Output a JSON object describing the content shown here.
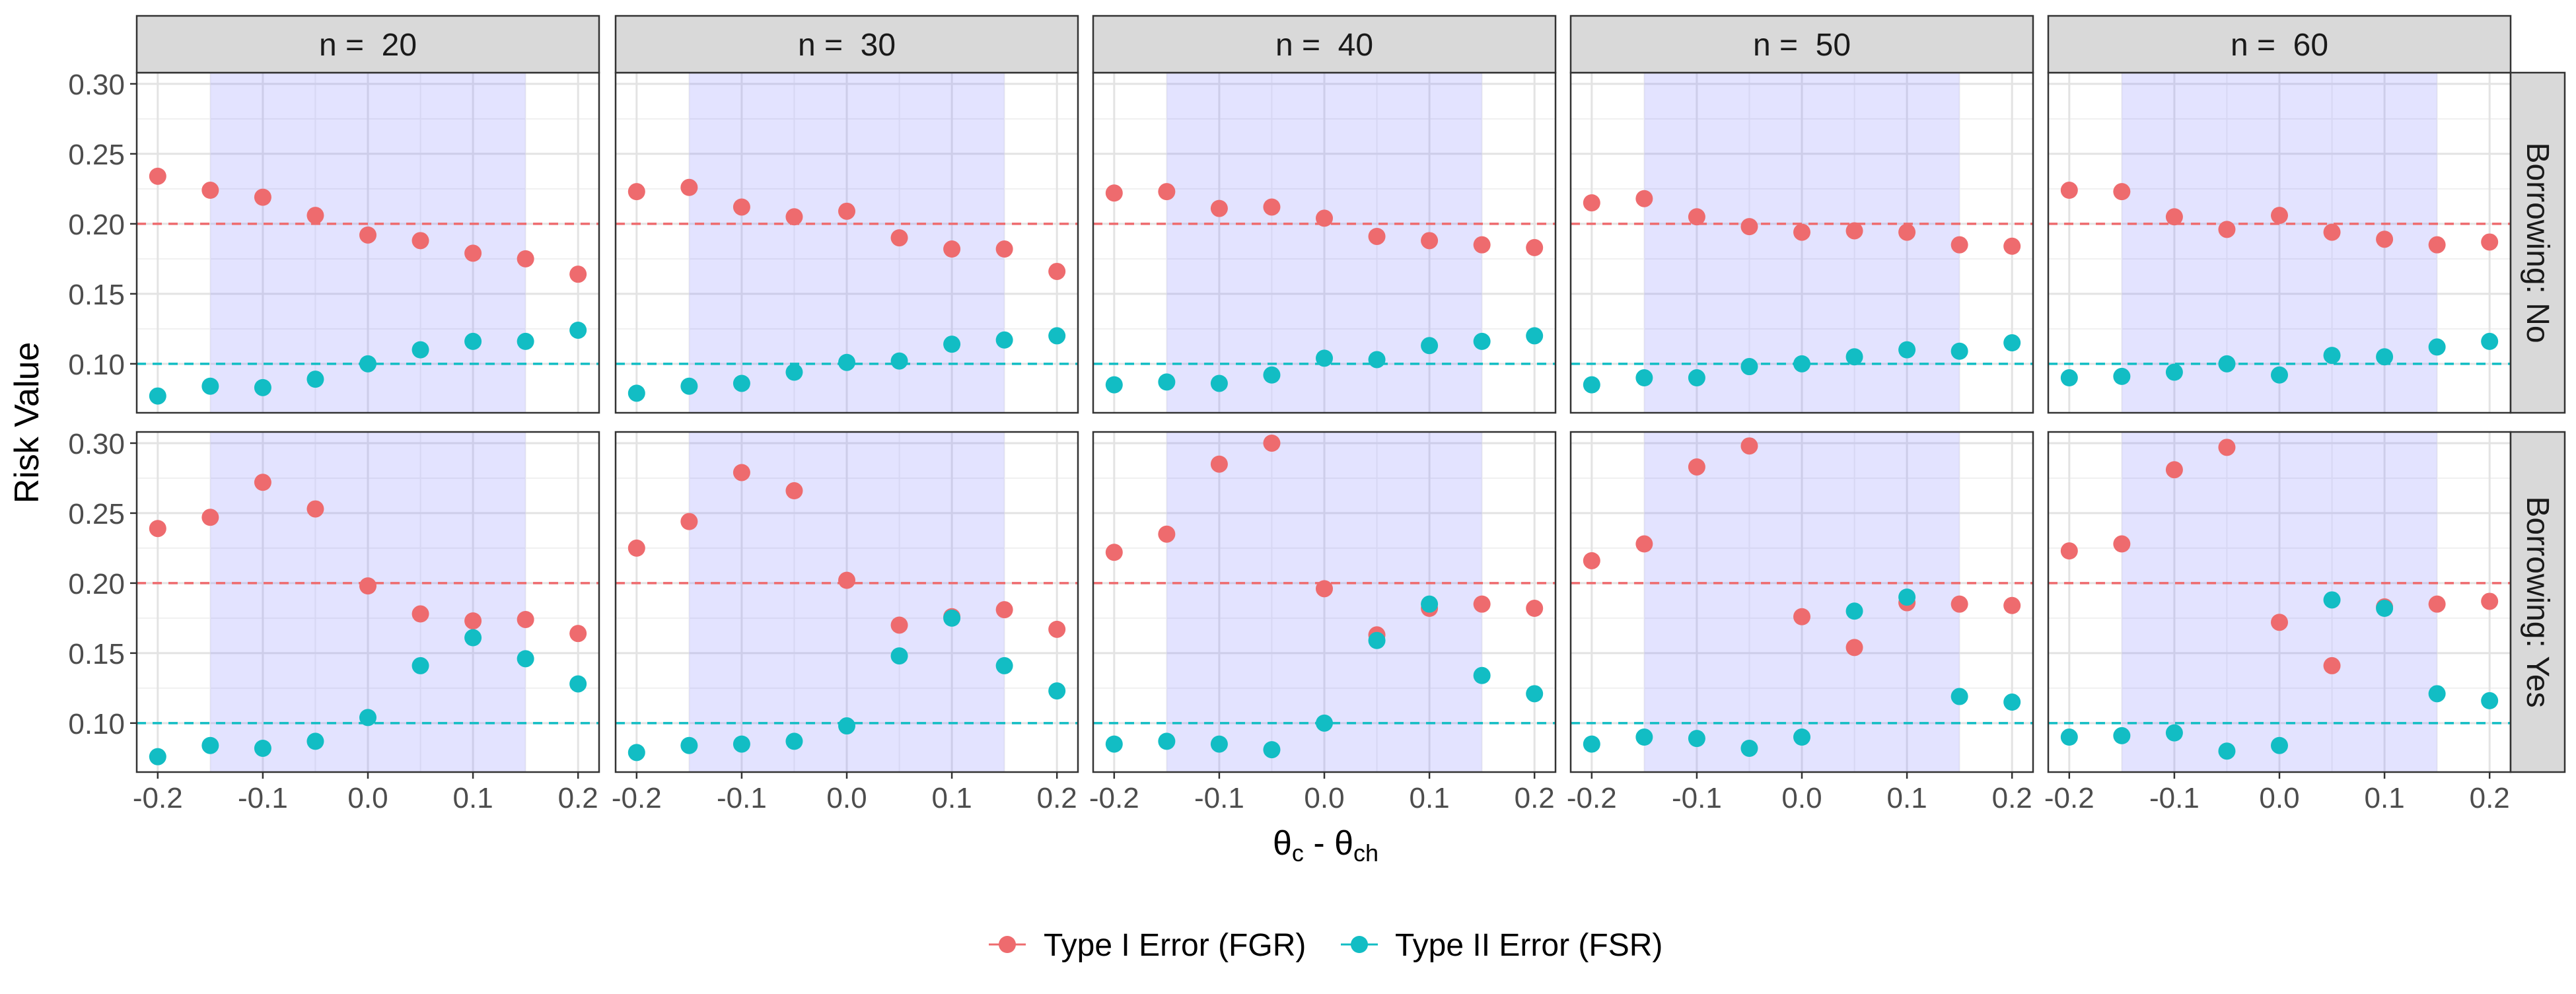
{
  "chart_data": {
    "type": "scatter",
    "title": "",
    "xlabel": "θc - θch",
    "xlabel_main": "θ",
    "xlabel_sub1": "c",
    "xlabel_sep": " - θ",
    "xlabel_sub2": "ch",
    "ylabel": "Risk Value",
    "xlim": [
      -0.22,
      0.22
    ],
    "ylim": [
      0.065,
      0.308
    ],
    "x": [
      -0.2,
      -0.15,
      -0.1,
      -0.05,
      0.0,
      0.05,
      0.1,
      0.15,
      0.2
    ],
    "x_ticks": [
      -0.2,
      -0.1,
      0.0,
      0.1,
      0.2
    ],
    "x_tick_labels": [
      "-0.2",
      "-0.1",
      "0.0",
      "0.1",
      "0.2"
    ],
    "y_ticks": [
      0.1,
      0.15,
      0.2,
      0.25,
      0.3
    ],
    "y_tick_labels": [
      "0.10",
      "0.15",
      "0.20",
      "0.25",
      "0.30"
    ],
    "shaded_region": [
      -0.15,
      0.15
    ],
    "shaded_color": "#e2e2ff",
    "grid": true,
    "legend_position": "bottom",
    "columns": [
      "n =  20",
      "n =  30",
      "n =  40",
      "n =  50",
      "n =  60"
    ],
    "rows": [
      "Borrowing: No",
      "Borrowing: Yes"
    ],
    "series": [
      {
        "name": "Type I Error (FGR)",
        "color": "#ee6b6e",
        "reference_line": 0.2,
        "values": [
          [
            [
              0.234,
              0.224,
              0.219,
              0.206,
              0.192,
              0.188,
              0.179,
              0.175,
              0.164
            ],
            [
              0.223,
              0.226,
              0.212,
              0.205,
              0.209,
              0.19,
              0.182,
              0.182,
              0.166
            ],
            [
              0.222,
              0.223,
              0.211,
              0.212,
              0.204,
              0.191,
              0.188,
              0.185,
              0.183
            ],
            [
              0.215,
              0.218,
              0.205,
              0.198,
              0.194,
              0.195,
              0.194,
              0.185,
              0.184
            ],
            [
              0.224,
              0.223,
              0.205,
              0.196,
              0.206,
              0.194,
              0.189,
              0.185,
              0.187
            ]
          ],
          [
            [
              0.239,
              0.247,
              0.272,
              0.253,
              0.198,
              0.178,
              0.173,
              0.174,
              0.164
            ],
            [
              0.225,
              0.244,
              0.279,
              0.266,
              0.202,
              0.17,
              0.176,
              0.181,
              0.167
            ],
            [
              0.222,
              0.235,
              0.285,
              0.3,
              0.196,
              0.163,
              0.182,
              0.185,
              0.182
            ],
            [
              0.216,
              0.228,
              0.283,
              0.298,
              0.176,
              0.154,
              0.186,
              0.185,
              0.184
            ],
            [
              0.223,
              0.228,
              0.281,
              0.297,
              0.172,
              0.141,
              0.183,
              0.185,
              0.187
            ]
          ]
        ]
      },
      {
        "name": "Type II Error (FSR)",
        "color": "#12bdc4",
        "reference_line": 0.1,
        "values": [
          [
            [
              0.077,
              0.084,
              0.083,
              0.089,
              0.1,
              0.11,
              0.116,
              0.116,
              0.124
            ],
            [
              0.079,
              0.084,
              0.086,
              0.094,
              0.101,
              0.102,
              0.114,
              0.117,
              0.12
            ],
            [
              0.085,
              0.087,
              0.086,
              0.092,
              0.104,
              0.103,
              0.113,
              0.116,
              0.12
            ],
            [
              0.085,
              0.09,
              0.09,
              0.098,
              0.1,
              0.105,
              0.11,
              0.109,
              0.115
            ],
            [
              0.09,
              0.091,
              0.094,
              0.1,
              0.092,
              0.106,
              0.105,
              0.112,
              0.116
            ]
          ],
          [
            [
              0.076,
              0.084,
              0.082,
              0.087,
              0.104,
              0.141,
              0.161,
              0.146,
              0.128
            ],
            [
              0.079,
              0.084,
              0.085,
              0.087,
              0.098,
              0.148,
              0.175,
              0.141,
              0.123
            ],
            [
              0.085,
              0.087,
              0.085,
              0.081,
              0.1,
              0.159,
              0.185,
              0.134,
              0.121
            ],
            [
              0.085,
              0.09,
              0.089,
              0.082,
              0.09,
              0.18,
              0.19,
              0.119,
              0.115
            ],
            [
              0.09,
              0.091,
              0.093,
              0.08,
              0.084,
              0.188,
              0.182,
              0.121,
              0.116
            ]
          ]
        ]
      }
    ]
  }
}
